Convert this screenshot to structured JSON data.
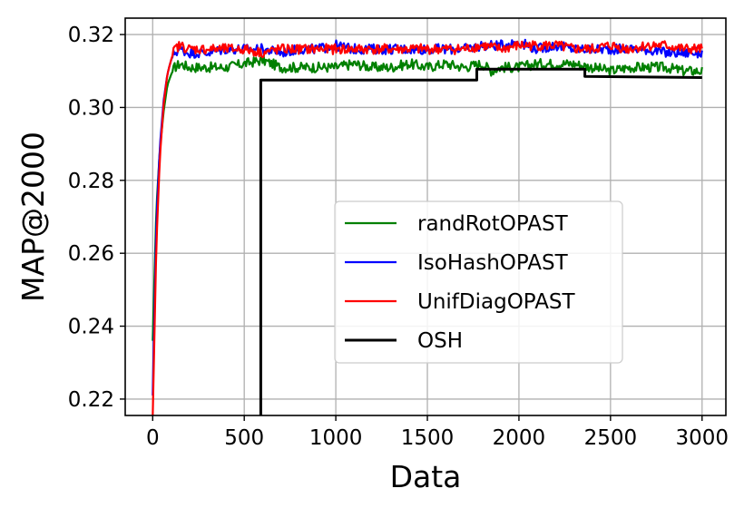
{
  "chart_data": {
    "type": "line",
    "xlabel": "Data",
    "ylabel": "MAP@2000",
    "xlim": [
      -150,
      3130
    ],
    "ylim": [
      0.2155,
      0.3245
    ],
    "xticks": [
      0,
      500,
      1000,
      1500,
      2000,
      2500,
      3000
    ],
    "xtick_labels": [
      "0",
      "500",
      "1000",
      "1500",
      "2000",
      "2500",
      "3000"
    ],
    "yticks": [
      0.22,
      0.24,
      0.26,
      0.28,
      0.3,
      0.32
    ],
    "ytick_labels": [
      "0.22",
      "0.24",
      "0.26",
      "0.28",
      "0.30",
      "0.32"
    ],
    "grid": true,
    "legend_position": "center-right",
    "series": [
      {
        "name": "randRotOPAST",
        "color": "#008000",
        "x": [
          0,
          20,
          40,
          60,
          80,
          100,
          120,
          150,
          200,
          300,
          400,
          500,
          600,
          700,
          800,
          900,
          1000,
          1100,
          1200,
          1300,
          1400,
          1500,
          1600,
          1700,
          1800,
          1850,
          1900,
          2000,
          2100,
          2200,
          2300,
          2400,
          2500,
          2600,
          2700,
          2800,
          2900,
          3000
        ],
        "y": [
          0.236,
          0.272,
          0.289,
          0.299,
          0.306,
          0.309,
          0.311,
          0.312,
          0.311,
          0.311,
          0.311,
          0.312,
          0.313,
          0.311,
          0.311,
          0.311,
          0.311,
          0.312,
          0.311,
          0.311,
          0.312,
          0.311,
          0.312,
          0.311,
          0.312,
          0.31,
          0.311,
          0.311,
          0.312,
          0.312,
          0.312,
          0.311,
          0.31,
          0.311,
          0.311,
          0.311,
          0.31,
          0.31
        ]
      },
      {
        "name": "IsoHashOPAST",
        "color": "#0000ff",
        "x": [
          0,
          20,
          40,
          60,
          80,
          100,
          120,
          150,
          200,
          300,
          400,
          500,
          600,
          700,
          800,
          900,
          1000,
          1100,
          1200,
          1300,
          1400,
          1500,
          1600,
          1700,
          1800,
          1900,
          2000,
          2100,
          2200,
          2300,
          2400,
          2500,
          2600,
          2700,
          2800,
          2900,
          3000
        ],
        "y": [
          0.221,
          0.268,
          0.29,
          0.302,
          0.309,
          0.313,
          0.315,
          0.316,
          0.315,
          0.315,
          0.316,
          0.316,
          0.316,
          0.315,
          0.316,
          0.316,
          0.317,
          0.316,
          0.316,
          0.316,
          0.316,
          0.316,
          0.316,
          0.316,
          0.317,
          0.317,
          0.318,
          0.316,
          0.317,
          0.316,
          0.316,
          0.316,
          0.316,
          0.316,
          0.315,
          0.315,
          0.315
        ]
      },
      {
        "name": "UnifDiagOPAST",
        "color": "#ff0000",
        "x": [
          0,
          20,
          40,
          60,
          80,
          100,
          120,
          150,
          200,
          300,
          400,
          500,
          600,
          700,
          800,
          900,
          1000,
          1100,
          1200,
          1300,
          1400,
          1500,
          1600,
          1700,
          1800,
          1900,
          2000,
          2100,
          2200,
          2300,
          2400,
          2500,
          2600,
          2700,
          2800,
          2900,
          3000
        ],
        "y": [
          0.215,
          0.262,
          0.287,
          0.301,
          0.309,
          0.313,
          0.316,
          0.317,
          0.316,
          0.316,
          0.316,
          0.316,
          0.315,
          0.316,
          0.316,
          0.316,
          0.316,
          0.316,
          0.316,
          0.316,
          0.316,
          0.316,
          0.316,
          0.316,
          0.317,
          0.316,
          0.317,
          0.317,
          0.317,
          0.316,
          0.316,
          0.317,
          0.316,
          0.317,
          0.317,
          0.316,
          0.316
        ]
      },
      {
        "name": "OSH",
        "color": "#000000",
        "x": [
          590,
          590,
          1770,
          1770,
          2360,
          2360,
          3000
        ],
        "y": [
          0.2155,
          0.3075,
          0.3075,
          0.3105,
          0.3105,
          0.3085,
          0.3082
        ]
      }
    ]
  }
}
